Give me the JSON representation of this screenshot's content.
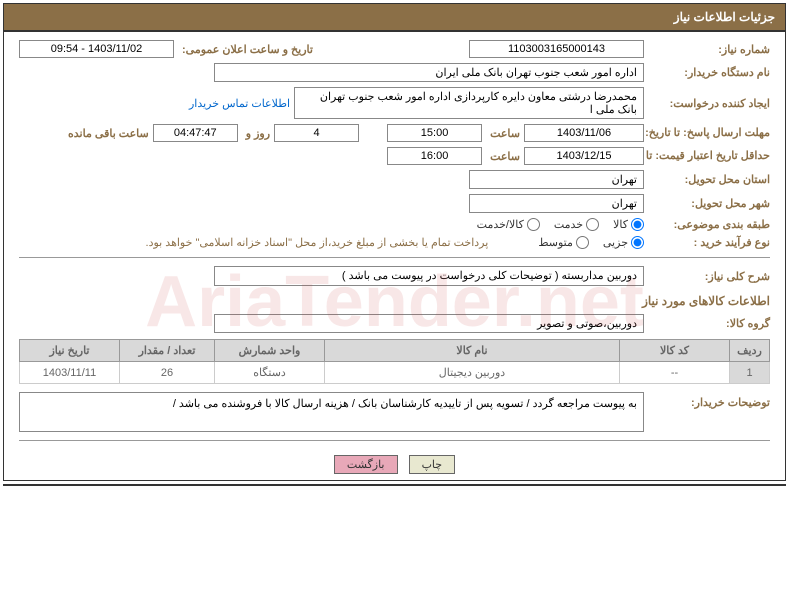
{
  "header": {
    "title": "جزئیات اطلاعات نیاز"
  },
  "fields": {
    "need_number_label": "شماره نیاز:",
    "need_number_value": "1103003165000143",
    "announce_label": "تاریخ و ساعت اعلان عمومی:",
    "announce_value": "1403/11/02 - 09:54",
    "buyer_org_label": "نام دستگاه خریدار:",
    "buyer_org_value": "اداره امور شعب جنوب تهران بانک ملی ایران",
    "requester_label": "ایجاد کننده درخواست:",
    "requester_value": "محمدرضا درشتی معاون دایره کارپردازی اداره امور شعب جنوب تهران بانک ملی ا",
    "contact_link": "اطلاعات تماس خریدار",
    "deadline_label": "مهلت ارسال پاسخ: تا تاریخ:",
    "deadline_date": "1403/11/06",
    "time_label": "ساعت",
    "deadline_time": "15:00",
    "days_value": "4",
    "days_and_label": "روز و",
    "countdown_value": "04:47:47",
    "remaining_label": "ساعت باقی مانده",
    "validity_label": "حداقل تاریخ اعتبار قیمت: تا تاریخ:",
    "validity_date": "1403/12/15",
    "validity_time": "16:00",
    "province_label": "استان محل تحویل:",
    "province_value": "تهران",
    "city_label": "شهر محل تحویل:",
    "city_value": "تهران",
    "category_label": "طبقه بندی موضوعی:",
    "cat_goods": "کالا",
    "cat_service": "خدمت",
    "cat_goods_service": "کالا/خدمت",
    "purchase_type_label": "نوع فرآیند خرید :",
    "pt_small": "جزیی",
    "pt_medium": "متوسط",
    "payment_note": "پرداخت تمام یا بخشی از مبلغ خرید،از محل \"اسناد خزانه اسلامی\" خواهد بود.",
    "desc_label": "شرح کلی نیاز:",
    "desc_value": "دوربین مداربسته ( توضیحات کلی درخواست در پیوست می باشد )",
    "goods_info_title": "اطلاعات کالاهای مورد نیاز",
    "goods_group_label": "گروه کالا:",
    "goods_group_value": "دوربین،صوتی و تصویر",
    "buyer_notes_label": "توضیحات خریدار:",
    "buyer_notes_value": "به پیوست مراجعه گردد / تسویه پس از تاییدیه کارشناسان بانک / هزینه ارسال کالا با فروشنده می باشد /"
  },
  "table": {
    "headers": {
      "row": "ردیف",
      "code": "کد کالا",
      "name": "نام کالا",
      "unit": "واحد شمارش",
      "qty": "تعداد / مقدار",
      "date": "تاریخ نیاز"
    },
    "rows": [
      {
        "row": "1",
        "code": "--",
        "name": "دوربین دیجیتال",
        "unit": "دستگاه",
        "qty": "26",
        "date": "1403/11/11"
      }
    ]
  },
  "buttons": {
    "print": "چاپ",
    "back": "بازگشت"
  },
  "watermark": "AriaTender.net"
}
